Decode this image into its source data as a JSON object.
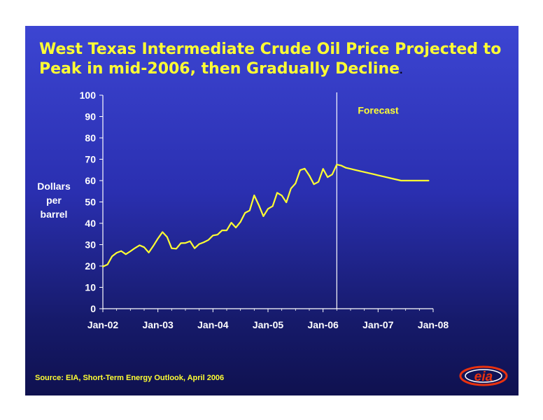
{
  "title": {
    "line1": "West Texas Intermediate Crude Oil Price Projected to",
    "line2": "Peak in mid-2006, then Gradually Decline",
    "suffix": "."
  },
  "ylabel_lines": [
    "Dollars",
    "per",
    "barrel"
  ],
  "source": "Source:  EIA, Short-Term Energy Outlook, April 2006",
  "logo_text": "eia",
  "colors": {
    "line": "#ffff33",
    "axis": "#ffffff",
    "title": "#ffff33",
    "logo": "#e8320f"
  },
  "chart_data": {
    "type": "line",
    "title": "",
    "xlabel": "",
    "ylabel": "Dollars per barrel",
    "ylim": [
      0,
      100
    ],
    "yticks": [
      0,
      10,
      20,
      30,
      40,
      50,
      60,
      70,
      80,
      90,
      100
    ],
    "xlim": [
      "2002-01",
      "2008-01"
    ],
    "xticks": [
      "Jan-02",
      "Jan-03",
      "Jan-04",
      "Jan-05",
      "Jan-06",
      "Jan-07",
      "Jan-08"
    ],
    "grid": false,
    "forecast_start": "2006-04",
    "forecast_label": "Forecast",
    "series": [
      {
        "x": [
          "2002-01",
          "2002-02",
          "2002-03",
          "2002-04",
          "2002-05",
          "2002-06",
          "2002-07",
          "2002-08",
          "2002-09",
          "2002-10",
          "2002-11",
          "2002-12",
          "2003-01",
          "2003-02",
          "2003-03",
          "2003-04",
          "2003-05",
          "2003-06",
          "2003-07",
          "2003-08",
          "2003-09",
          "2003-10",
          "2003-11",
          "2003-12",
          "2004-01",
          "2004-02",
          "2004-03",
          "2004-04",
          "2004-05",
          "2004-06",
          "2004-07",
          "2004-08",
          "2004-09",
          "2004-10",
          "2004-11",
          "2004-12",
          "2005-01",
          "2005-02",
          "2005-03",
          "2005-04",
          "2005-05",
          "2005-06",
          "2005-07",
          "2005-08",
          "2005-09",
          "2005-10",
          "2005-11",
          "2005-12",
          "2006-01",
          "2006-02",
          "2006-03",
          "2006-04",
          "2006-05",
          "2006-06",
          "2006-07",
          "2006-08",
          "2006-09",
          "2006-10",
          "2006-11",
          "2006-12",
          "2007-01",
          "2007-02",
          "2007-03",
          "2007-04",
          "2007-05",
          "2007-06",
          "2007-07",
          "2007-08",
          "2007-09",
          "2007-10",
          "2007-11",
          "2007-12"
        ],
        "values": [
          19.7,
          20.7,
          24.5,
          26.2,
          27.0,
          25.5,
          26.9,
          28.4,
          29.7,
          28.8,
          26.3,
          29.4,
          32.9,
          35.9,
          33.6,
          28.3,
          28.1,
          30.7,
          30.8,
          31.6,
          28.3,
          30.3,
          31.1,
          32.2,
          34.3,
          34.7,
          36.7,
          36.7,
          40.3,
          38.0,
          40.7,
          44.9,
          46.0,
          53.1,
          48.5,
          43.3,
          46.8,
          48.0,
          54.3,
          53.0,
          49.8,
          56.3,
          58.7,
          64.9,
          65.6,
          62.4,
          58.3,
          59.4,
          65.5,
          61.6,
          62.9,
          67.5,
          67.0,
          66.0,
          65.5,
          65.0,
          64.5,
          64.0,
          63.5,
          63.0,
          62.5,
          62.0,
          61.5,
          61.0,
          60.5,
          60.0,
          60.0,
          60.0,
          60.0,
          60.0,
          60.0,
          60.0
        ]
      }
    ]
  }
}
